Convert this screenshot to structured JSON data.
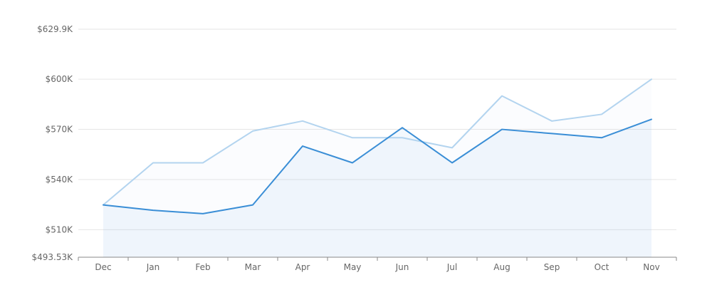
{
  "chart_data": {
    "type": "line",
    "categories": [
      "Dec",
      "Jan",
      "Feb",
      "Mar",
      "Apr",
      "May",
      "Jun",
      "Jul",
      "Aug",
      "Sep",
      "Oct",
      "Nov"
    ],
    "y_ticks": [
      493530,
      510000,
      540000,
      570000,
      600000,
      629900
    ],
    "y_tick_labels": [
      "$493.53K",
      "$510K",
      "$540K",
      "$570K",
      "$600K",
      "$629.9K"
    ],
    "ylim": [
      493530,
      629900
    ],
    "grid": true,
    "title": "",
    "xlabel": "",
    "ylabel": "",
    "series": [
      {
        "color": "#b3d4ef",
        "values": [
          524800,
          550000,
          550000,
          569000,
          575000,
          565000,
          565000,
          559000,
          590000,
          575000,
          579000,
          600000
        ]
      },
      {
        "color": "#3a8ed6",
        "values": [
          524800,
          521600,
          519600,
          524800,
          560000,
          550000,
          571000,
          550000,
          570000,
          567500,
          565000,
          576000
        ]
      }
    ]
  }
}
